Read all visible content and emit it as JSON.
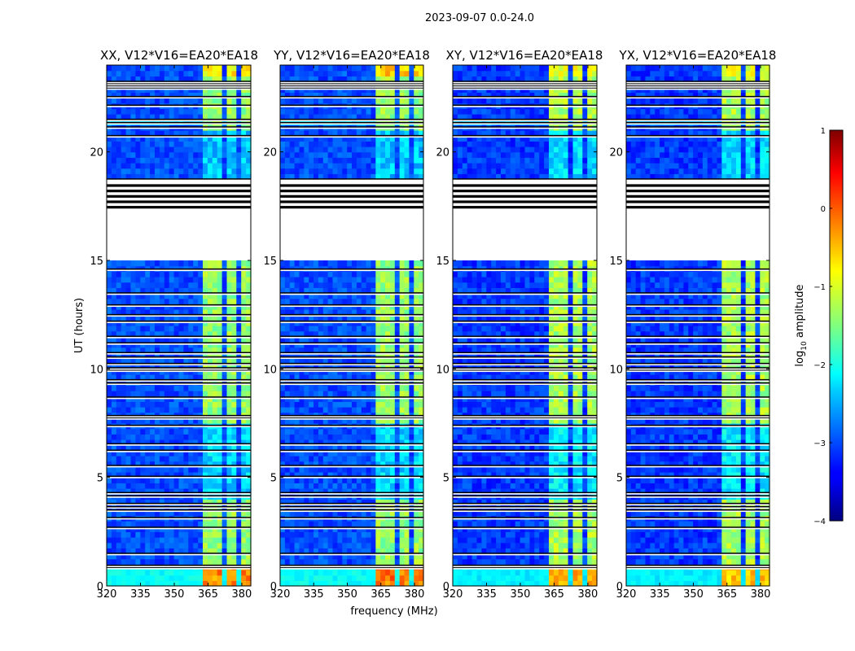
{
  "figure_title": "2023-09-07 0.0-24.0",
  "chart_data": [
    {
      "type": "heatmap",
      "title": "XX, V12*V16=EA20*EA18",
      "xlabel": "frequency (MHz)",
      "ylabel": "UT (hours)",
      "xlim": [
        320,
        384
      ],
      "ylim": [
        0,
        24
      ],
      "xticks": [
        320,
        335,
        350,
        365,
        380
      ],
      "yticks": [
        0,
        5,
        10,
        15,
        20
      ],
      "base_level": -3.0,
      "flagged_ut_ranges": [
        [
          15.1,
          18.7
        ]
      ],
      "bright_bands_mhz": [
        [
          362,
          367
        ],
        [
          368,
          372
        ],
        [
          374,
          378
        ],
        [
          379,
          383
        ]
      ],
      "band_level": -1.4,
      "bottom_band_level": -0.3,
      "top_band_level": -0.8
    },
    {
      "type": "heatmap",
      "title": "YY, V12*V16=EA20*EA18",
      "xlabel": "frequency (MHz)",
      "ylabel": "UT (hours)",
      "xlim": [
        320,
        384
      ],
      "ylim": [
        0,
        24
      ],
      "xticks": [
        320,
        335,
        350,
        365,
        380
      ],
      "yticks": [
        0,
        5,
        10,
        15,
        20
      ],
      "base_level": -3.0,
      "flagged_ut_ranges": [
        [
          15.1,
          18.7
        ]
      ],
      "bright_bands_mhz": [
        [
          362,
          367
        ],
        [
          368,
          372
        ],
        [
          374,
          378
        ],
        [
          379,
          383
        ]
      ],
      "band_level": -1.4,
      "bottom_band_level": -0.2,
      "top_band_level": -0.6
    },
    {
      "type": "heatmap",
      "title": "XY, V12*V16=EA20*EA18",
      "xlabel": "frequency (MHz)",
      "ylabel": "UT (hours)",
      "xlim": [
        320,
        384
      ],
      "ylim": [
        0,
        24
      ],
      "xticks": [
        320,
        335,
        350,
        365,
        380
      ],
      "yticks": [
        0,
        5,
        10,
        15,
        20
      ],
      "base_level": -3.1,
      "flagged_ut_ranges": [
        [
          15.1,
          18.7
        ]
      ],
      "bright_bands_mhz": [
        [
          362,
          367
        ],
        [
          368,
          372
        ],
        [
          374,
          378
        ],
        [
          379,
          383
        ]
      ],
      "band_level": -1.3,
      "bottom_band_level": -0.5,
      "top_band_level": -1.0
    },
    {
      "type": "heatmap",
      "title": "YX, V12*V16=EA20*EA18",
      "xlabel": "frequency (MHz)",
      "ylabel": "UT (hours)",
      "xlim": [
        320,
        384
      ],
      "ylim": [
        0,
        24
      ],
      "xticks": [
        320,
        335,
        350,
        365,
        380
      ],
      "yticks": [
        0,
        5,
        10,
        15,
        20
      ],
      "base_level": -3.1,
      "flagged_ut_ranges": [
        [
          15.1,
          18.7
        ]
      ],
      "bright_bands_mhz": [
        [
          362,
          367
        ],
        [
          368,
          372
        ],
        [
          374,
          378
        ],
        [
          379,
          383
        ]
      ],
      "band_level": -1.3,
      "bottom_band_level": -0.6,
      "top_band_level": -1.0
    }
  ],
  "shared_flag_lines_ut": [
    0.85,
    0.95,
    1.5,
    2.7,
    3.15,
    3.5,
    3.65,
    3.8,
    4.15,
    4.3,
    5.05,
    5.55,
    6.25,
    6.55,
    7.4,
    7.75,
    7.85,
    8.7,
    9.35,
    9.5,
    9.95,
    10.05,
    10.25,
    10.55,
    10.75,
    11.2,
    11.5,
    12.2,
    12.5,
    12.95,
    13.5,
    14.6,
    18.75,
    20.75,
    21.15,
    21.35,
    21.5,
    22.15,
    22.55,
    22.95,
    23.05,
    23.15,
    23.25
  ],
  "colorbar": {
    "label": "log",
    "label_sub": "10",
    "label_suffix": " amplitude",
    "range": [
      -4,
      1
    ],
    "ticks": [
      "1",
      "0",
      "−1",
      "−2",
      "−3",
      "−4"
    ]
  }
}
